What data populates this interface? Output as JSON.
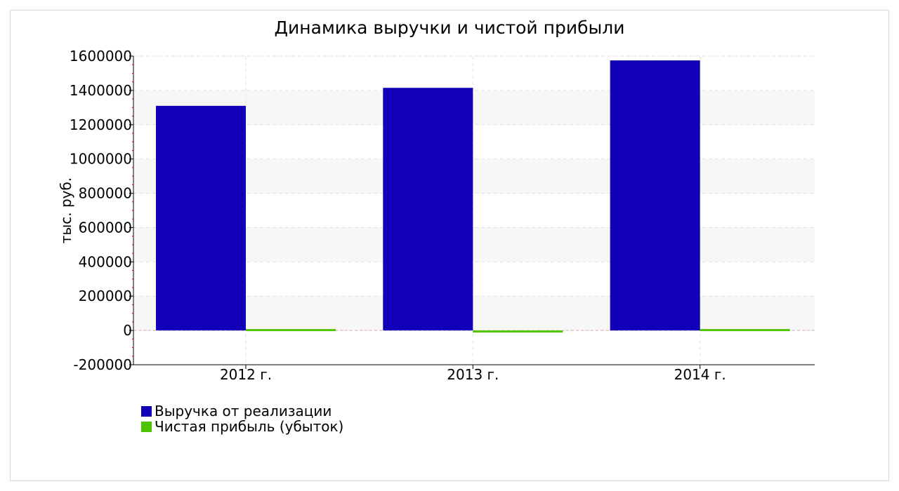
{
  "chart_data": {
    "type": "bar",
    "title": "Динамика выручки и чистой прибыли",
    "xlabel": "",
    "ylabel": "тыс. руб.",
    "categories": [
      "2012 г.",
      "2013 г.",
      "2014 г."
    ],
    "series": [
      {
        "name": "Выручка от реализации",
        "values": [
          1310000,
          1415000,
          1575000
        ],
        "color": "#1100b8"
      },
      {
        "name": "Чистая прибыль (убыток)",
        "values": [
          6000,
          -3000,
          8000
        ],
        "color": "#4ec400"
      }
    ],
    "ylim": [
      -200000,
      1600000
    ],
    "yticks": [
      "1600000",
      "1400000",
      "1200000",
      "1000000",
      "800000",
      "600000",
      "400000",
      "200000",
      "0",
      "-200000"
    ],
    "ytick_values": [
      1600000,
      1400000,
      1200000,
      1000000,
      800000,
      600000,
      400000,
      200000,
      0,
      -200000
    ],
    "grid": true,
    "legend_position": "bottom-left"
  }
}
